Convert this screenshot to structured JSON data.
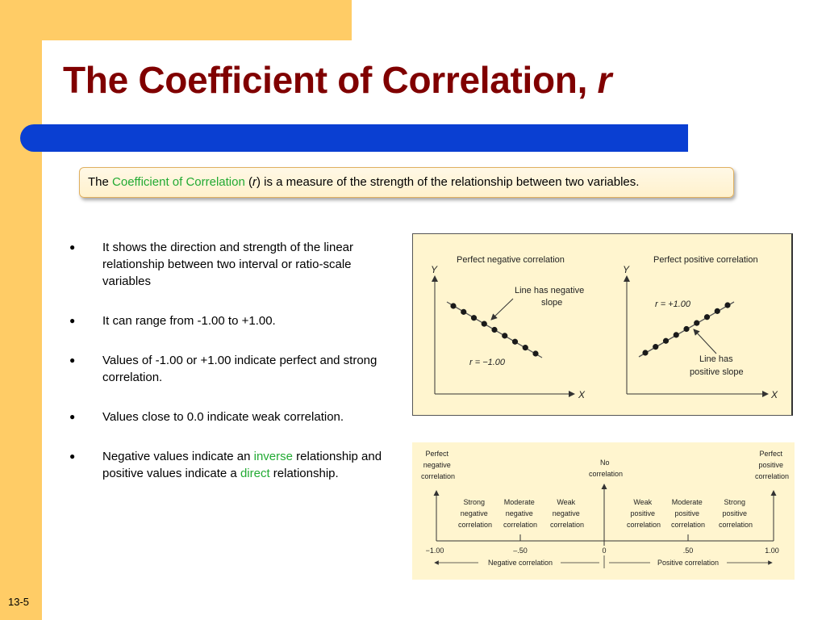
{
  "slide": {
    "title_main": "The Coefficient of Correlation, ",
    "title_var": "r",
    "slide_number": "13-5"
  },
  "definition": {
    "prefix": "The ",
    "term": "Coefficient of Correlation",
    "open_paren": " (",
    "var": "r",
    "suffix": ") is a measure of the strength of the relationship between two variables."
  },
  "bullets": {
    "b1": "It shows the direction and strength of the linear relationship between two interval or ratio-scale variables",
    "b2": "It can range from -1.00 to +1.00.",
    "b3": "Values of -1.00 or +1.00 indicate perfect and strong correlation.",
    "b4": "Values close to 0.0 indicate weak correlation.",
    "b5_a": "Negative values indicate an ",
    "b5_inverse": "inverse",
    "b5_b": " relationship and positive values indicate a ",
    "b5_direct": "direct",
    "b5_c": " relationship."
  },
  "figure_scatter": {
    "neg_title": "Perfect negative correlation",
    "pos_title": "Perfect positive correlation",
    "y_label": "Y",
    "x_label": "X",
    "neg_note_1": "Line has negative",
    "neg_note_2": "slope",
    "neg_r": "r = −1.00",
    "pos_r": "r = +1.00",
    "pos_note_1": "Line has",
    "pos_note_2": "positive slope"
  },
  "figure_scale": {
    "perfect_neg": [
      "Perfect",
      "negative",
      "correlation"
    ],
    "no_corr": [
      "No",
      "correlation"
    ],
    "perfect_pos": [
      "Perfect",
      "positive",
      "correlation"
    ],
    "strong_neg": [
      "Strong",
      "negative",
      "correlation"
    ],
    "moderate_neg": [
      "Moderate",
      "negative",
      "correlation"
    ],
    "weak_neg": [
      "Weak",
      "negative",
      "correlation"
    ],
    "weak_pos": [
      "Weak",
      "positive",
      "correlation"
    ],
    "moderate_pos": [
      "Moderate",
      "positive",
      "correlation"
    ],
    "strong_pos": [
      "Strong",
      "positive",
      "correlation"
    ],
    "ticks": [
      "−1.00",
      "–.50",
      "0",
      ".50",
      "1.00"
    ],
    "neg_range": "Negative correlation",
    "pos_range": "Positive correlation"
  },
  "colors": {
    "title": "#800000",
    "accent_band": "#ffcc66",
    "blue_bar": "#0a3fd2",
    "highlight_green": "#22aa33"
  }
}
